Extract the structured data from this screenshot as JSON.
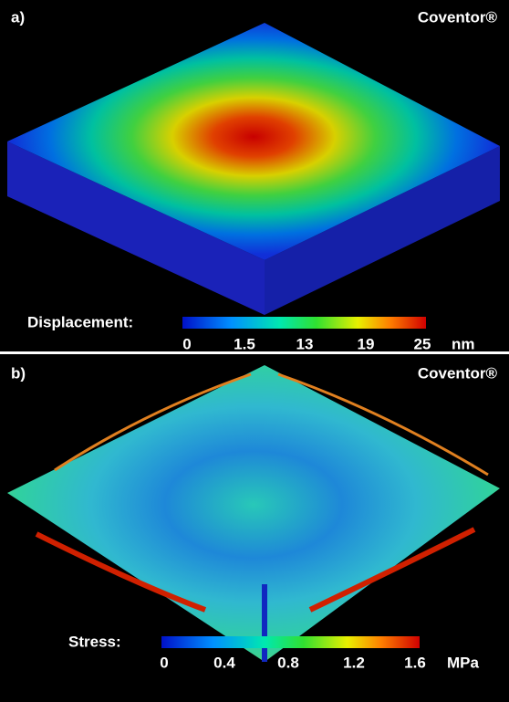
{
  "panels": [
    {
      "label": "a)",
      "brand": "Coventor®",
      "colorbar": {
        "title": "Displacement:",
        "ticks": [
          "0",
          "1.5",
          "13",
          "19",
          "25"
        ],
        "unit": "nm"
      }
    },
    {
      "label": "b)",
      "brand": "Coventor®",
      "colorbar": {
        "title": "Stress:",
        "ticks": [
          "0",
          "0.4",
          "0.8",
          "1.2",
          "1.6"
        ],
        "unit": "MPa"
      }
    }
  ]
}
